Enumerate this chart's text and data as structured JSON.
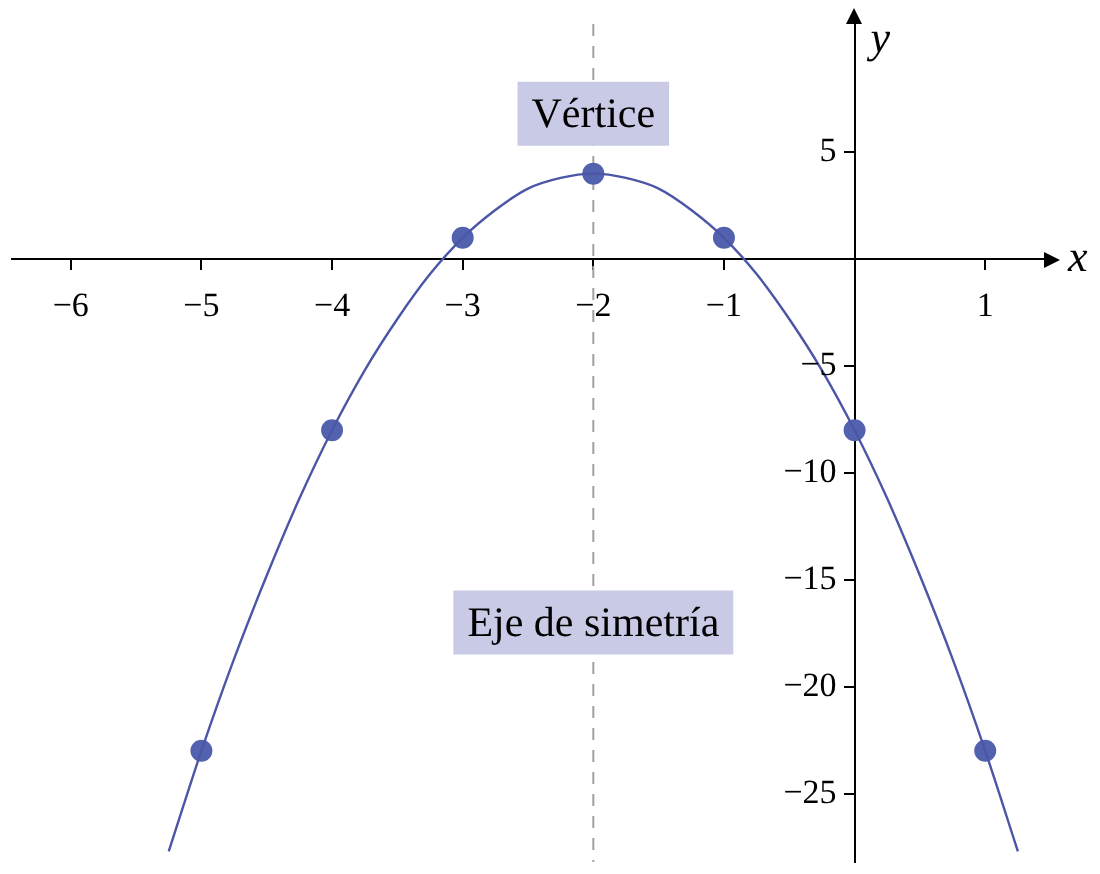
{
  "chart_data": {
    "type": "line",
    "xlabel": "x",
    "ylabel": "y",
    "xlim": [
      -6.45,
      1.45
    ],
    "ylim": [
      -28.2,
      11
    ],
    "xticks": [
      -6,
      -5,
      -4,
      -3,
      -2,
      -1,
      1
    ],
    "yticks": [
      -25,
      -20,
      -15,
      -10,
      -5,
      5
    ],
    "series": [
      {
        "type": "line",
        "marker": "none",
        "color": "#4b56a6",
        "x": [
          -5.25,
          -5,
          -4.75,
          -4.5,
          -4.25,
          -4,
          -3.75,
          -3.5,
          -3.25,
          -3,
          -2.75,
          -2.5,
          -2.25,
          -2,
          -1.75,
          -1.5,
          -1.25,
          -1,
          -0.75,
          -0.5,
          -0.25,
          0,
          0.25,
          0.5,
          0.75,
          1,
          1.25
        ],
        "values": [
          -27.7,
          -23,
          -18.7,
          -14.8,
          -11.2,
          -8,
          -5.2,
          -2.8,
          -0.7,
          1,
          2.3,
          3.3,
          3.8,
          4,
          3.8,
          3.3,
          2.3,
          1,
          -0.7,
          -2.8,
          -5.2,
          -8,
          -11.2,
          -14.8,
          -18.7,
          -23,
          -27.7
        ]
      },
      {
        "type": "scatter",
        "marker": "circle",
        "color": "#5262ae",
        "x": [
          -5,
          -4,
          -3,
          -2,
          -1,
          0,
          1
        ],
        "values": [
          -23,
          -8,
          1,
          4,
          1,
          -8,
          -23
        ]
      }
    ],
    "ref_lines": [
      {
        "axis": "x",
        "value": -2,
        "color": "#a0a0a0",
        "line_style": "dashed"
      }
    ],
    "annotations": [
      {
        "text": "Vértice",
        "x": -2,
        "y": 4
      },
      {
        "text": "Eje de simetría",
        "x": -2,
        "y": -17
      }
    ],
    "legend": false
  }
}
